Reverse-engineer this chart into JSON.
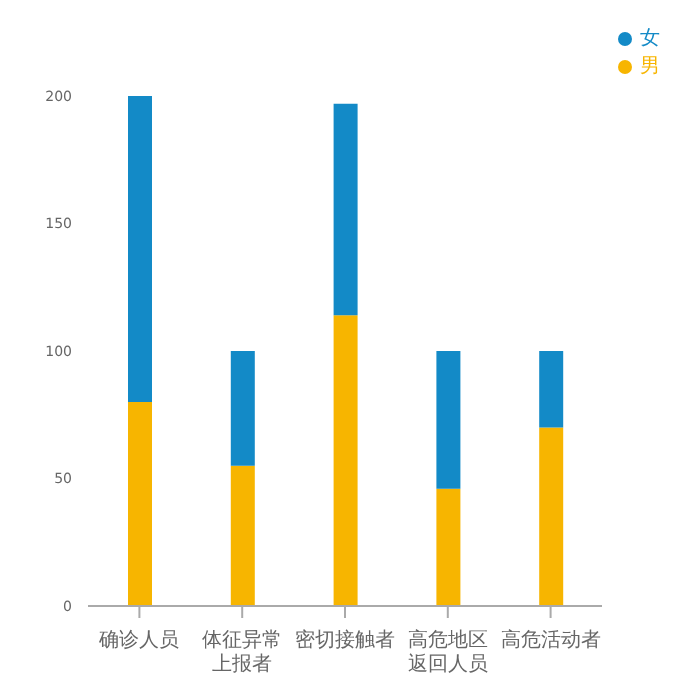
{
  "chart_data": {
    "type": "bar",
    "stacked": true,
    "categories": [
      "确诊人员",
      "体征异常上报者",
      "密切接触者",
      "高危地区返回人员",
      "高危活动者"
    ],
    "series": [
      {
        "name": "男",
        "color": "#f7b500",
        "values": [
          80,
          55,
          114,
          46,
          70
        ]
      },
      {
        "name": "女",
        "color": "#138ac7",
        "values": [
          120,
          45,
          83,
          54,
          30
        ]
      }
    ],
    "ylim": [
      0,
      200
    ],
    "yticks": [
      0,
      50,
      100,
      150,
      200
    ],
    "grid": false,
    "legend": "top right"
  }
}
